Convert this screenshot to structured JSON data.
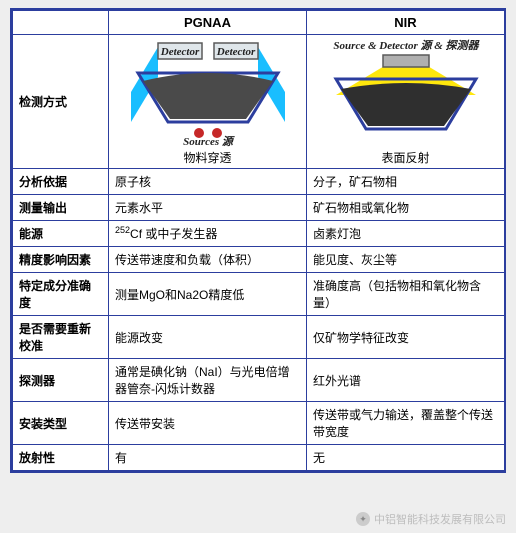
{
  "table": {
    "border_color": "#2c3e9e",
    "header": {
      "blank": "",
      "col1": "PGNAA",
      "col2": "NIR"
    },
    "diagrams": {
      "pgnaa": {
        "caption": "物料穿透",
        "detector_label": "Detector",
        "sources_label": "Sources 源",
        "colors": {
          "beam": "#00b7ff",
          "detector_fill": "#dfe6ea",
          "material": "#4a4a4a",
          "hopper": "#2c3e9e",
          "source": "#c62828"
        }
      },
      "nir": {
        "caption": "表面反射",
        "source_label": "Source & Detector 源 & 探测器",
        "colors": {
          "beam": "#ffe600",
          "device_fill": "#b0b0b0",
          "material": "#2f2f2f",
          "hopper": "#2c3e9e"
        }
      }
    },
    "rows": [
      {
        "label": "检测方式",
        "pgnaa": "",
        "nir": "",
        "is_diagram": true
      },
      {
        "label": "分析依据",
        "pgnaa": "原子核",
        "nir": "分子，矿石物相"
      },
      {
        "label": "测量输出",
        "pgnaa": "元素水平",
        "nir": "矿石物相或氧化物"
      },
      {
        "label": "能源",
        "pgnaa_html": "<sup>252</sup>Cf 或中子发生器",
        "nir": "卤素灯泡"
      },
      {
        "label": "精度影响因素",
        "pgnaa": "传送带速度和负载（体积）",
        "nir": "能见度、灰尘等"
      },
      {
        "label": "特定成分准确度",
        "pgnaa": "测量MgO和Na2O精度低",
        "nir": "准确度高（包括物相和氧化物含量）"
      },
      {
        "label": "是否需要重新校准",
        "pgnaa": "能源改变",
        "nir": "仅矿物学特征改变"
      },
      {
        "label": "探测器",
        "pgnaa": "通常是碘化钠（NaI）与光电倍增器管奈-闪烁计数器",
        "nir": "红外光谱"
      },
      {
        "label": "安装类型",
        "pgnaa": "传送带安装",
        "nir": "传送带或气力输送，覆盖整个传送带宽度"
      },
      {
        "label": "放射性",
        "pgnaa": "有",
        "nir": "无"
      }
    ]
  },
  "watermark": {
    "text": "中铝智能科技发展有限公司"
  }
}
